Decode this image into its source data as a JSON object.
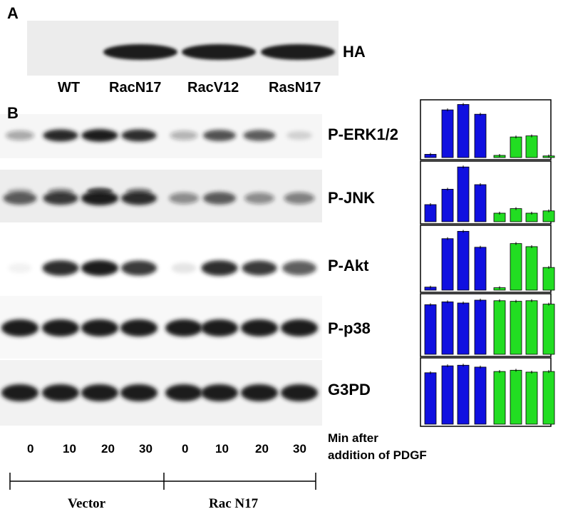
{
  "panel_a": {
    "letter": "A",
    "label": "HA",
    "lanes": [
      "WT",
      "RacN17",
      "RacV12",
      "RasN17"
    ]
  },
  "panel_b": {
    "letter": "B",
    "proteins": [
      "P-ERK1/2",
      "P-JNK",
      "P-Akt",
      "P-p38",
      "G3PD"
    ],
    "time_points": [
      "0",
      "10",
      "20",
      "30",
      "0",
      "10",
      "20",
      "30"
    ],
    "time_caption_line1": "Min after",
    "time_caption_line2": "addition of PDGF",
    "groups": [
      "Vector",
      "Rac N17"
    ]
  },
  "colors": {
    "vector": "#1010e0",
    "rac_n17": "#22dd22",
    "band": "#1a1a1a"
  },
  "bar_charts": [
    {
      "protein": "P-ERK1/2",
      "vector": [
        0.06,
        0.88,
        0.98,
        0.8
      ],
      "rac_n17": [
        0.04,
        0.38,
        0.4,
        0.03
      ]
    },
    {
      "protein": "P-JNK",
      "vector": [
        0.3,
        0.57,
        0.96,
        0.65
      ],
      "rac_n17": [
        0.15,
        0.23,
        0.15,
        0.19
      ]
    },
    {
      "protein": "P-Akt",
      "vector": [
        0.05,
        0.84,
        0.96,
        0.7
      ],
      "rac_n17": [
        0.04,
        0.76,
        0.71,
        0.37
      ]
    },
    {
      "protein": "P-p38",
      "vector": [
        0.87,
        0.92,
        0.9,
        0.95
      ],
      "rac_n17": [
        0.94,
        0.93,
        0.94,
        0.88
      ]
    },
    {
      "protein": "G3PD",
      "vector": [
        0.82,
        0.93,
        0.94,
        0.91
      ],
      "rac_n17": [
        0.84,
        0.86,
        0.83,
        0.84
      ]
    }
  ]
}
